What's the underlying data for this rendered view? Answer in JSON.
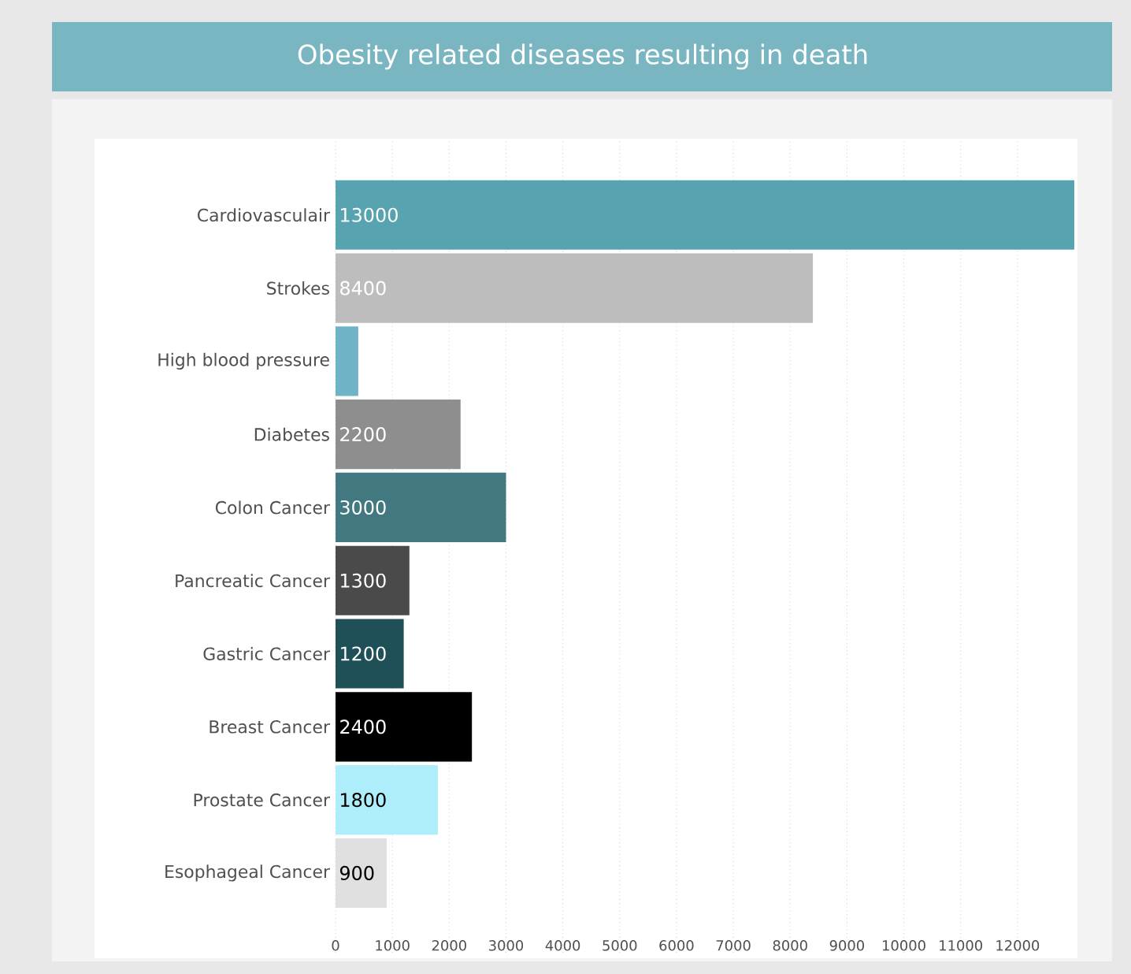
{
  "chart_data": {
    "type": "bar",
    "orientation": "horizontal",
    "title": "Obesity related diseases resulting in death",
    "categories": [
      "Cardiovasculair",
      "Strokes",
      "High blood pressure",
      "Diabetes",
      "Colon Cancer",
      "Pancreatic Cancer",
      "Gastric Cancer",
      "Breast Cancer",
      "Prostate Cancer",
      "Esophageal Cancer"
    ],
    "values": [
      13000,
      8400,
      400,
      2200,
      3000,
      1300,
      1200,
      2400,
      1800,
      900
    ],
    "value_labels": [
      "13000",
      "8400",
      null,
      "2200",
      "3000",
      "1300",
      "1200",
      "2400",
      "1800",
      "900"
    ],
    "colors": [
      "#57a3b0",
      "#bdbdbd",
      "#6fb3c6",
      "#8e8e8e",
      "#427980",
      "#4a4a4a",
      "#1f5058",
      "#000000",
      "#aeeefa",
      "#e0e0e0"
    ],
    "xlim": [
      0,
      13000
    ],
    "xticks": [
      0,
      1000,
      2000,
      3000,
      4000,
      5000,
      6000,
      7000,
      8000,
      9000,
      10000,
      11000,
      12000
    ],
    "grid": "x"
  }
}
